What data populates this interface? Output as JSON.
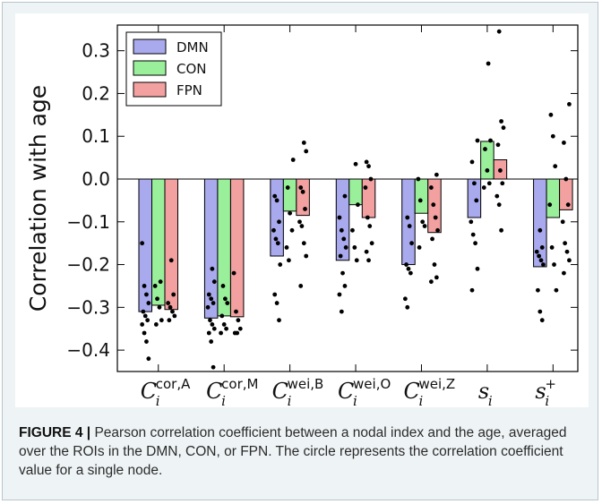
{
  "chart_data": {
    "type": "bar",
    "ylabel": "Correlation with age",
    "ylim": [
      -0.45,
      0.36
    ],
    "yticks": [
      -0.4,
      -0.3,
      -0.2,
      -0.1,
      0.0,
      0.1,
      0.2,
      0.3
    ],
    "ytick_labels": [
      "−0.4",
      "−0.3",
      "−0.2",
      "−0.1",
      "0.0",
      "0.1",
      "0.2",
      "0.3"
    ],
    "grid": false,
    "legend_position": "top-left",
    "categories": [
      {
        "base": "C",
        "sub": "i",
        "sup": "cor,A"
      },
      {
        "base": "C",
        "sub": "i",
        "sup": "cor,M"
      },
      {
        "base": "C",
        "sub": "i",
        "sup": "wei,B"
      },
      {
        "base": "C",
        "sub": "i",
        "sup": "wei,O"
      },
      {
        "base": "C",
        "sub": "i",
        "sup": "wei,Z"
      },
      {
        "base": "s",
        "sub": "i",
        "sup": ""
      },
      {
        "base": "s",
        "sub": "i",
        "sup": "+"
      }
    ],
    "series": [
      {
        "name": "DMN",
        "color": "#a9a9ee",
        "values": [
          -0.31,
          -0.325,
          -0.18,
          -0.19,
          -0.2,
          -0.09,
          -0.205
        ],
        "points": [
          [
            -0.15,
            -0.25,
            -0.27,
            -0.29,
            -0.31,
            -0.32,
            -0.33,
            -0.34,
            -0.36,
            -0.38,
            -0.42
          ],
          [
            -0.21,
            -0.24,
            -0.27,
            -0.28,
            -0.29,
            -0.3,
            -0.33,
            -0.34,
            -0.35,
            -0.36,
            -0.38,
            -0.44
          ],
          [
            -0.04,
            -0.05,
            -0.1,
            -0.12,
            -0.14,
            -0.15,
            -0.2,
            -0.27,
            -0.29,
            -0.33
          ],
          [
            -0.04,
            -0.09,
            -0.12,
            -0.14,
            -0.16,
            -0.18,
            -0.22,
            -0.25,
            -0.27,
            -0.31
          ],
          [
            -0.09,
            -0.11,
            -0.15,
            -0.2,
            -0.21,
            -0.22,
            -0.28,
            -0.3
          ],
          [
            0.09,
            0.04,
            -0.01,
            -0.05,
            -0.1,
            -0.13,
            -0.15,
            -0.21,
            -0.26
          ],
          [
            -0.12,
            -0.16,
            -0.17,
            -0.18,
            -0.19,
            -0.2,
            -0.26,
            -0.31,
            -0.33
          ]
        ]
      },
      {
        "name": "CON",
        "color": "#9af09a",
        "values": [
          -0.295,
          -0.32,
          -0.075,
          -0.06,
          -0.08,
          0.088,
          -0.09
        ],
        "points": [
          [
            -0.24,
            -0.25,
            -0.28,
            -0.3,
            -0.33,
            -0.34
          ],
          [
            -0.25,
            -0.28,
            -0.29,
            -0.32,
            -0.34,
            -0.35,
            -0.36
          ],
          [
            0.045,
            -0.02,
            -0.08,
            -0.12,
            -0.16,
            -0.19
          ],
          [
            0.035,
            -0.06,
            -0.12,
            -0.16,
            -0.19
          ],
          [
            0.0,
            -0.05,
            -0.1,
            -0.11,
            -0.16
          ],
          [
            0.27,
            0.09,
            0.07,
            0.02,
            -0.01,
            -0.02
          ],
          [
            0.15,
            0.1,
            0.03,
            -0.06,
            -0.16,
            -0.2,
            -0.26
          ]
        ]
      },
      {
        "name": "FPN",
        "color": "#f2a0a0",
        "values": [
          -0.305,
          -0.322,
          -0.085,
          -0.09,
          -0.125,
          0.045,
          -0.072
        ],
        "points": [
          [
            -0.19,
            -0.27,
            -0.29,
            -0.3,
            -0.31,
            -0.32,
            -0.33
          ],
          [
            -0.22,
            -0.31,
            -0.33,
            -0.35,
            -0.36,
            -0.36
          ],
          [
            0.085,
            0.065,
            -0.02,
            -0.03,
            -0.07,
            -0.1,
            -0.11,
            -0.15,
            -0.18,
            -0.25
          ],
          [
            0.04,
            0.03,
            0.0,
            -0.02,
            -0.09,
            -0.11,
            -0.15,
            -0.17,
            -0.19
          ],
          [
            0.01,
            -0.02,
            -0.06,
            -0.09,
            -0.12,
            -0.14,
            -0.2,
            -0.23,
            -0.24
          ],
          [
            0.345,
            0.135,
            0.12,
            0.08,
            0.02,
            -0.01,
            -0.04,
            -0.06,
            -0.12
          ],
          [
            0.175,
            0.085,
            0.0,
            -0.06,
            -0.1,
            -0.15,
            -0.17,
            -0.19,
            -0.22
          ]
        ]
      }
    ]
  },
  "caption": {
    "label": "FIGURE 4 |",
    "text": " Pearson correlation coefficient between a nodal index and the age, averaged over the ROIs in the DMN, CON, or FPN. The circle represents the correlation coefficient value for a single node."
  }
}
